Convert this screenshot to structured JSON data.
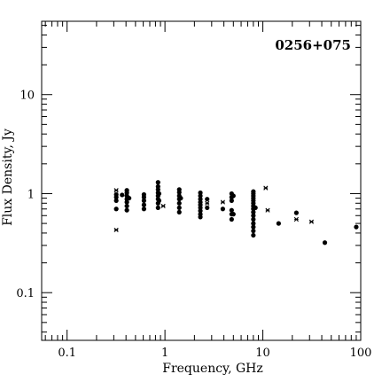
{
  "chart_data": {
    "type": "scatter",
    "title": "0256+075",
    "xlabel": "Frequency, GHz",
    "ylabel": "Flux Density, Jy",
    "x_scale": "log",
    "y_scale": "log",
    "xlim": [
      0.055,
      100
    ],
    "ylim": [
      0.033,
      55
    ],
    "grid": false,
    "x_ticks": [
      {
        "value": 0.1,
        "label": "0.1"
      },
      {
        "value": 1,
        "label": "1"
      },
      {
        "value": 10,
        "label": "10"
      },
      {
        "value": 100,
        "label": "100"
      }
    ],
    "y_ticks": [
      {
        "value": 0.1,
        "label": "0.1"
      },
      {
        "value": 1,
        "label": "1"
      },
      {
        "value": 10,
        "label": "10"
      }
    ],
    "series": [
      {
        "marker": "dot",
        "points": [
          [
            0.318,
            0.7
          ],
          [
            0.318,
            0.85
          ],
          [
            0.318,
            0.92
          ],
          [
            0.318,
            0.98
          ],
          [
            0.365,
            0.97
          ],
          [
            0.408,
            0.68
          ],
          [
            0.408,
            0.75
          ],
          [
            0.408,
            0.82
          ],
          [
            0.408,
            0.88
          ],
          [
            0.408,
            0.95
          ],
          [
            0.408,
            1.02
          ],
          [
            0.408,
            1.08
          ],
          [
            0.43,
            0.9
          ],
          [
            0.61,
            0.7
          ],
          [
            0.61,
            0.77
          ],
          [
            0.61,
            0.85
          ],
          [
            0.61,
            0.92
          ],
          [
            0.61,
            0.98
          ],
          [
            0.85,
            0.72
          ],
          [
            0.85,
            0.8
          ],
          [
            0.85,
            0.88
          ],
          [
            0.85,
            0.95
          ],
          [
            0.85,
            1.02
          ],
          [
            0.85,
            1.1
          ],
          [
            0.85,
            1.18
          ],
          [
            0.85,
            1.3
          ],
          [
            0.87,
            0.85
          ],
          [
            0.87,
            1.0
          ],
          [
            1.4,
            0.65
          ],
          [
            1.4,
            0.72
          ],
          [
            1.4,
            0.8
          ],
          [
            1.4,
            0.88
          ],
          [
            1.4,
            0.95
          ],
          [
            1.4,
            1.03
          ],
          [
            1.4,
            1.1
          ],
          [
            1.45,
            0.9
          ],
          [
            2.3,
            0.58
          ],
          [
            2.3,
            0.62
          ],
          [
            2.3,
            0.67
          ],
          [
            2.3,
            0.72
          ],
          [
            2.3,
            0.77
          ],
          [
            2.3,
            0.82
          ],
          [
            2.3,
            0.88
          ],
          [
            2.3,
            0.95
          ],
          [
            2.3,
            1.02
          ],
          [
            2.7,
            0.72
          ],
          [
            2.7,
            0.88
          ],
          [
            3.9,
            0.7
          ],
          [
            4.8,
            0.55
          ],
          [
            4.8,
            0.62
          ],
          [
            4.8,
            0.68
          ],
          [
            4.8,
            0.85
          ],
          [
            4.8,
            0.92
          ],
          [
            4.8,
            1.0
          ],
          [
            5.0,
            0.62
          ],
          [
            5.0,
            0.95
          ],
          [
            8.0,
            0.38
          ],
          [
            8.0,
            0.42
          ],
          [
            8.0,
            0.46
          ],
          [
            8.0,
            0.5
          ],
          [
            8.0,
            0.55
          ],
          [
            8.0,
            0.6
          ],
          [
            8.0,
            0.65
          ],
          [
            8.0,
            0.7
          ],
          [
            8.0,
            0.75
          ],
          [
            8.0,
            0.8
          ],
          [
            8.0,
            0.85
          ],
          [
            8.0,
            0.9
          ],
          [
            8.0,
            0.95
          ],
          [
            8.0,
            1.0
          ],
          [
            8.0,
            1.05
          ],
          [
            8.4,
            0.72
          ],
          [
            14.5,
            0.5
          ],
          [
            22.0,
            0.64
          ],
          [
            43.0,
            0.32
          ],
          [
            90.0,
            0.46
          ]
        ]
      },
      {
        "marker": "cross",
        "points": [
          [
            0.318,
            0.43
          ],
          [
            0.318,
            1.08
          ],
          [
            0.96,
            0.75
          ],
          [
            2.7,
            0.8
          ],
          [
            3.9,
            0.82
          ],
          [
            8.0,
            0.73
          ],
          [
            10.7,
            1.14
          ],
          [
            11.2,
            0.68
          ],
          [
            22.0,
            0.55
          ],
          [
            31.4,
            0.52
          ]
        ]
      }
    ]
  }
}
